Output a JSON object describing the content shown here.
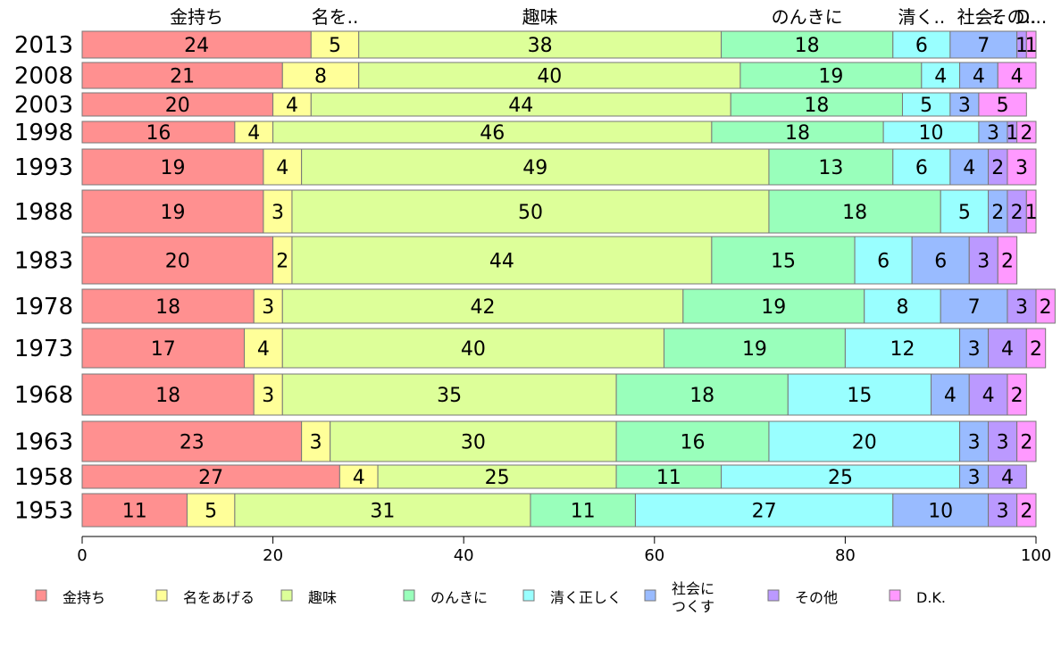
{
  "chart_data": {
    "type": "bar",
    "orientation": "horizontal",
    "stacked": true,
    "title": "",
    "xlabel": "",
    "ylabel": "",
    "xlim": [
      0,
      100
    ],
    "x_ticks": [
      "0",
      "20",
      "40",
      "60",
      "80",
      "100"
    ],
    "top_labels": [
      "金持ち",
      "名を..",
      "趣味",
      "のんきに",
      "清く..",
      "社会..",
      "その..",
      "D..."
    ],
    "categories": [
      "2013",
      "2008",
      "2003",
      "1998",
      "1993",
      "1988",
      "1983",
      "1978",
      "1973",
      "1968",
      "1963",
      "1958",
      "1953"
    ],
    "series": [
      {
        "name": "金持ち",
        "color": "#ff9090",
        "values": [
          24,
          21,
          20,
          16,
          19,
          19,
          20,
          18,
          17,
          18,
          23,
          27,
          11
        ]
      },
      {
        "name": "名をあげる",
        "color": "#ffff99",
        "values": [
          5,
          8,
          4,
          4,
          4,
          3,
          2,
          3,
          4,
          3,
          3,
          4,
          5
        ]
      },
      {
        "name": "趣味",
        "color": "#ddff99",
        "values": [
          38,
          40,
          44,
          46,
          49,
          50,
          44,
          42,
          40,
          35,
          30,
          25,
          31
        ]
      },
      {
        "name": "のんきに",
        "color": "#99ffbb",
        "values": [
          18,
          19,
          18,
          18,
          13,
          18,
          15,
          19,
          19,
          18,
          16,
          11,
          11
        ]
      },
      {
        "name": "清く正しく",
        "color": "#99ffff",
        "values": [
          6,
          4,
          5,
          10,
          6,
          5,
          6,
          8,
          12,
          15,
          20,
          25,
          27
        ]
      },
      {
        "name": "社会に\nつくす",
        "color": "#99bbff",
        "values": [
          7,
          4,
          3,
          3,
          4,
          2,
          6,
          7,
          3,
          4,
          3,
          3,
          10
        ]
      },
      {
        "name": "その他",
        "color": "#bb99ff",
        "values": [
          1,
          0,
          0,
          1,
          2,
          2,
          3,
          3,
          4,
          4,
          3,
          4,
          3
        ]
      },
      {
        "name": "D.K.",
        "color": "#ff99ff",
        "values": [
          1,
          4,
          5,
          2,
          3,
          1,
          2,
          2,
          2,
          2,
          2,
          0,
          2
        ]
      }
    ],
    "legend_position": "bottom",
    "grid": false
  }
}
